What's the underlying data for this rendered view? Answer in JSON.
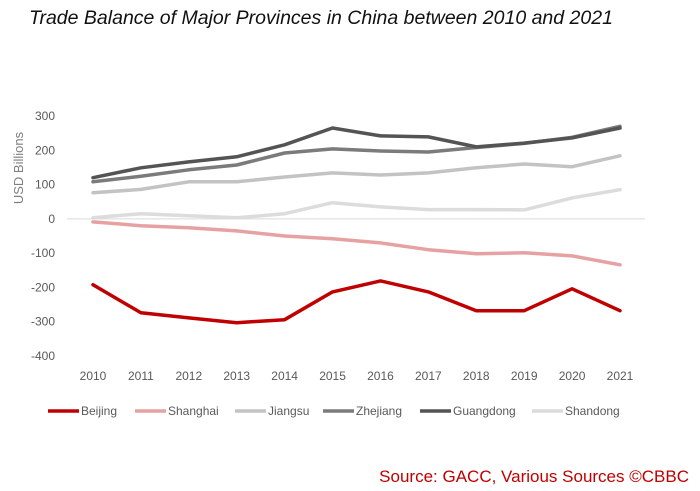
{
  "chart_data": {
    "type": "line",
    "title": "Trade Balance of Major Provinces in China between 2010 and 2021",
    "xlabel": "",
    "ylabel": "USD Billions",
    "ylim": [
      -400,
      300
    ],
    "yticks": [
      300,
      200,
      100,
      0,
      -100,
      -200,
      -300,
      -400
    ],
    "ytick_labels": [
      "300",
      "200",
      "100",
      "0",
      "-100",
      "-200",
      "-300",
      "-400"
    ],
    "categories": [
      "2010",
      "2011",
      "2012",
      "2013",
      "2014",
      "2015",
      "2016",
      "2017",
      "2018",
      "2019",
      "2020",
      "2021"
    ],
    "grid": false,
    "zero_line": true,
    "legend_position": "bottom",
    "series": [
      {
        "name": "Beijing",
        "color": "#c00000",
        "values": [
          -192,
          -274,
          -289,
          -303,
          -294,
          -213,
          -181,
          -213,
          -268,
          -268,
          -204,
          -268
        ]
      },
      {
        "name": "Shanghai",
        "color": "#e6a1a3",
        "values": [
          -9,
          -20,
          -26,
          -35,
          -50,
          -58,
          -70,
          -90,
          -102,
          -99,
          -108,
          -134
        ]
      },
      {
        "name": "Jiangsu",
        "color": "#c3c3c3",
        "values": [
          76,
          86,
          108,
          108,
          122,
          134,
          128,
          134,
          149,
          160,
          152,
          184
        ]
      },
      {
        "name": "Zhejiang",
        "color": "#7b7b7b",
        "values": [
          108,
          124,
          143,
          157,
          192,
          204,
          198,
          195,
          208,
          220,
          238,
          270
        ]
      },
      {
        "name": "Guangdong",
        "color": "#545454",
        "values": [
          120,
          149,
          166,
          181,
          216,
          265,
          242,
          239,
          210,
          221,
          236,
          265
        ]
      },
      {
        "name": "Shandong",
        "color": "#dcdcdc",
        "values": [
          3,
          15,
          9,
          3,
          15,
          47,
          35,
          27,
          27,
          26,
          61,
          85
        ]
      }
    ]
  },
  "source_note": "Source: GACC, Various Sources ©CBBC"
}
